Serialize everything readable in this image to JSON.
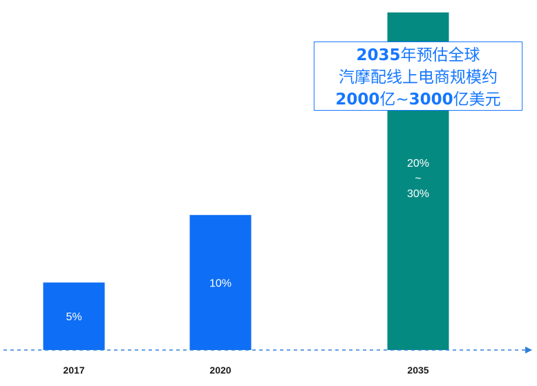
{
  "chart_data": {
    "type": "bar",
    "categories": [
      "2017",
      "2020",
      "2035"
    ],
    "values": [
      5,
      10,
      25
    ],
    "value_labels": [
      "5%",
      "10%",
      "20%\n~\n30%"
    ],
    "title": "",
    "xlabel": "",
    "ylabel": "",
    "ylim": [
      0,
      25
    ],
    "grid": false,
    "legend": "none"
  },
  "colors": {
    "bar": "#0e6ef5",
    "highlight": "#058a82",
    "axis": "#2f7ed8",
    "callout": "#1677ff"
  },
  "callout": {
    "line1_year": "2035",
    "line1_text": "年预估全球",
    "line2": "汽摩配线上电商规模约",
    "line3_num1": "2000",
    "line3_mid": "亿~",
    "line3_num2": "3000",
    "line3_end": "亿美元"
  }
}
